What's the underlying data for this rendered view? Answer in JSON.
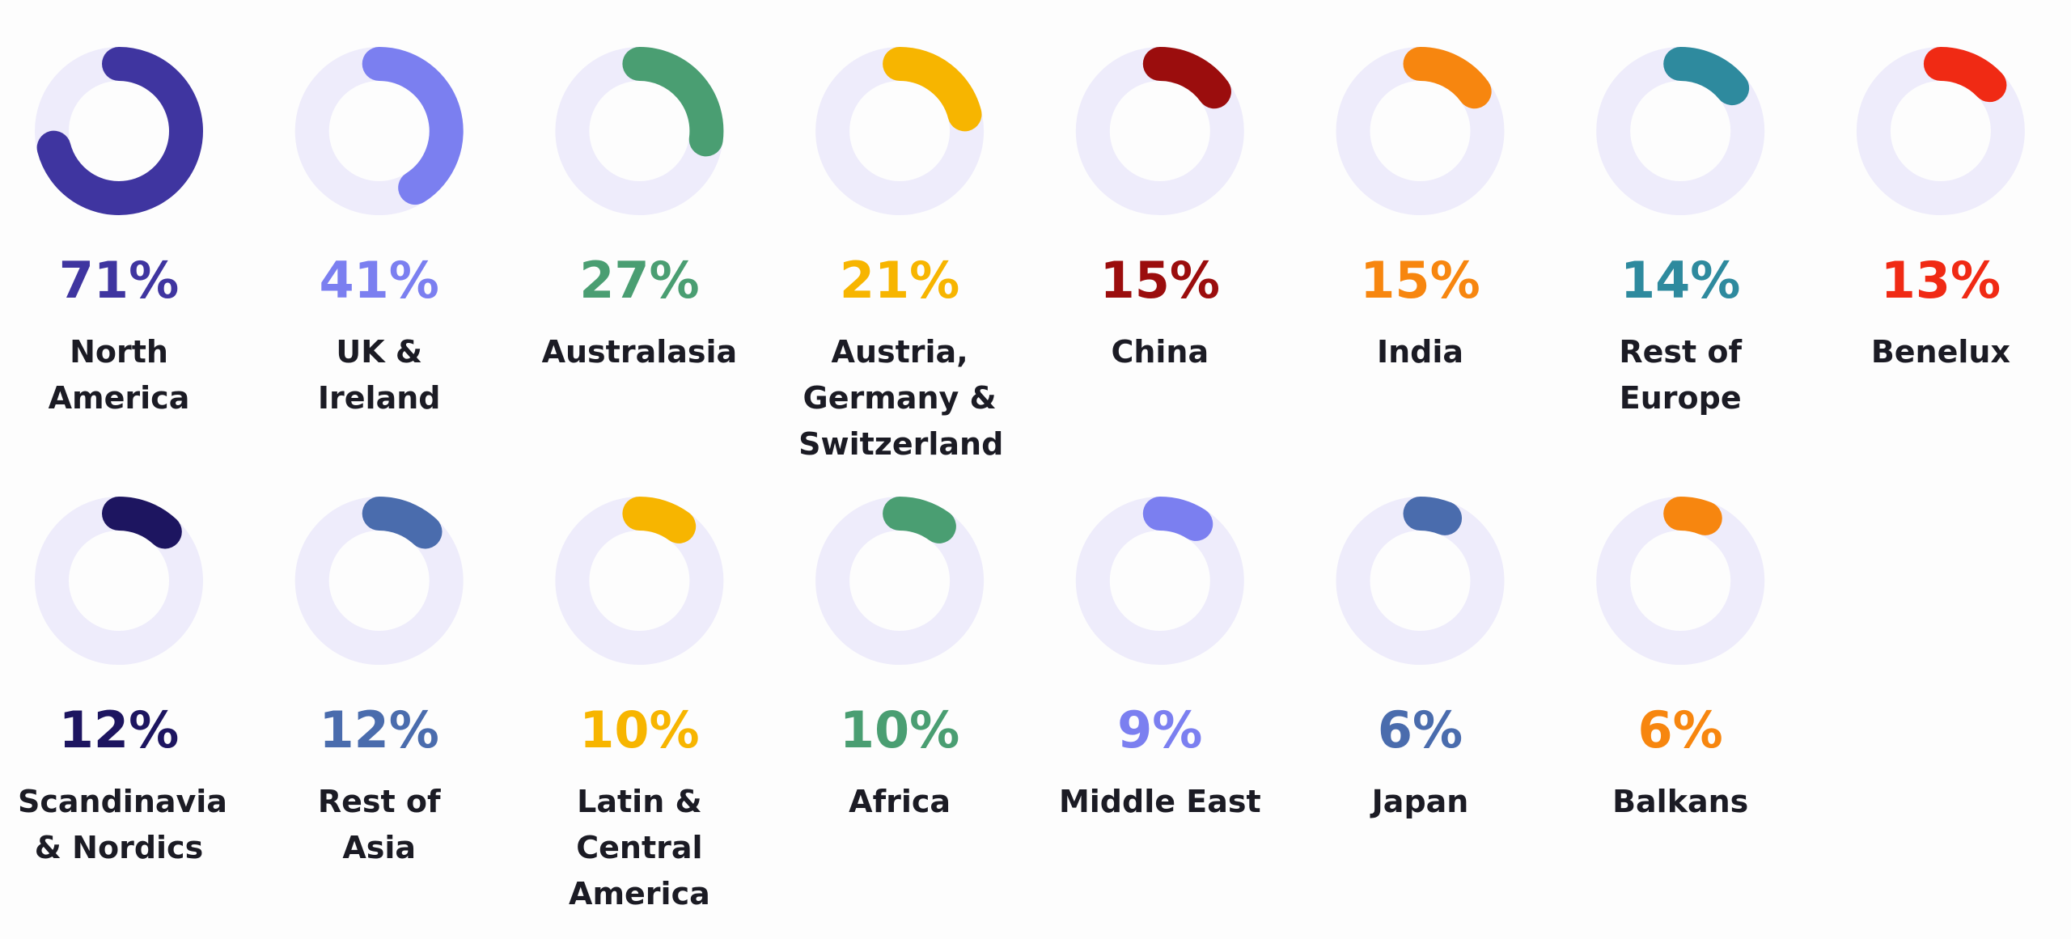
{
  "chart_data": {
    "type": "radial-progress",
    "categories": [
      "North America",
      "UK & Ireland",
      "Australasia",
      "Austria, Germany & Switzerland",
      "China",
      "India",
      "Rest of Europe",
      "Benelux",
      "Scandinavia & Nordics",
      "Rest of Asia",
      "Latin & Central America",
      "Africa",
      "Middle East",
      "Japan",
      "Balkans"
    ],
    "values": [
      71,
      41,
      27,
      21,
      15,
      15,
      14,
      13,
      12,
      12,
      10,
      10,
      9,
      6,
      6
    ],
    "value_labels": [
      "71%",
      "41%",
      "27%",
      "21%",
      "15%",
      "15%",
      "14%",
      "13%",
      "12%",
      "12%",
      "10%",
      "10%",
      "9%",
      "6%",
      "6%"
    ],
    "colors": [
      "#3f35a0",
      "#7b7ff0",
      "#4a9e72",
      "#f7b500",
      "#9b0d0d",
      "#f7860f",
      "#2e8a9e",
      "#f02a14",
      "#1d1560",
      "#4a6cad",
      "#f7b500",
      "#4a9e72",
      "#7b7ff0",
      "#4a6cad",
      "#f7860f"
    ]
  }
}
